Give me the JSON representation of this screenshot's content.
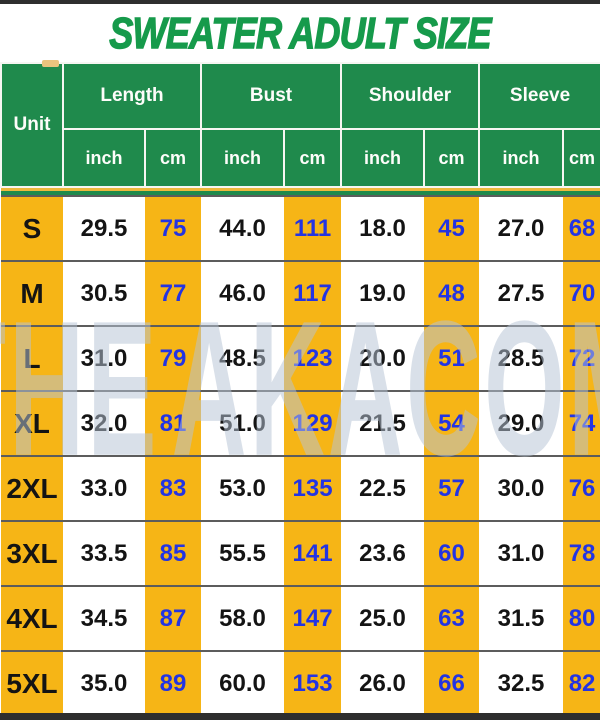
{
  "page": {
    "title": "SWEATER ADULT SIZE"
  },
  "watermark": {
    "text_left": "THE",
    "text_right": "AKACOM",
    "logo": "yakacom-y-logo"
  },
  "colors": {
    "title_green": "#169a4b",
    "header_green": "#1f8a4c",
    "cell_yellow": "#f6b516",
    "cm_blue": "#2334e3",
    "inch_black": "#141414",
    "row_separator_gray": "#5c5c5c",
    "edge_strip_dark": "#2e2e2e",
    "watermark_gray": "#b7c3d5",
    "watermark_red": "#e04848"
  },
  "chart_data": {
    "type": "table",
    "title": "SWEATER ADULT SIZE",
    "unit_header": "Unit",
    "measure_groups": [
      "Length",
      "Bust",
      "Shoulder",
      "Sleeve"
    ],
    "unit_subheaders": [
      "inch",
      "cm"
    ],
    "column_headers": [
      "Unit",
      "Length inch",
      "Length cm",
      "Bust inch",
      "Bust cm",
      "Shoulder inch",
      "Shoulder cm",
      "Sleeve inch",
      "Sleeve cm"
    ],
    "rows": [
      {
        "size": "S",
        "values": [
          "29.5",
          "75",
          "44.0",
          "111",
          "18.0",
          "45",
          "27.0",
          "68"
        ]
      },
      {
        "size": "M",
        "values": [
          "30.5",
          "77",
          "46.0",
          "117",
          "19.0",
          "48",
          "27.5",
          "70"
        ]
      },
      {
        "size": "L",
        "values": [
          "31.0",
          "79",
          "48.5",
          "123",
          "20.0",
          "51",
          "28.5",
          "72"
        ]
      },
      {
        "size": "XL",
        "values": [
          "32.0",
          "81",
          "51.0",
          "129",
          "21.5",
          "54",
          "29.0",
          "74"
        ]
      },
      {
        "size": "2XL",
        "values": [
          "33.0",
          "83",
          "53.0",
          "135",
          "22.5",
          "57",
          "30.0",
          "76"
        ]
      },
      {
        "size": "3XL",
        "values": [
          "33.5",
          "85",
          "55.5",
          "141",
          "23.6",
          "60",
          "31.0",
          "78"
        ]
      },
      {
        "size": "4XL",
        "values": [
          "34.5",
          "87",
          "58.0",
          "147",
          "25.0",
          "63",
          "31.5",
          "80"
        ]
      },
      {
        "size": "5XL",
        "values": [
          "35.0",
          "89",
          "60.0",
          "153",
          "26.0",
          "66",
          "32.5",
          "82"
        ]
      }
    ]
  }
}
